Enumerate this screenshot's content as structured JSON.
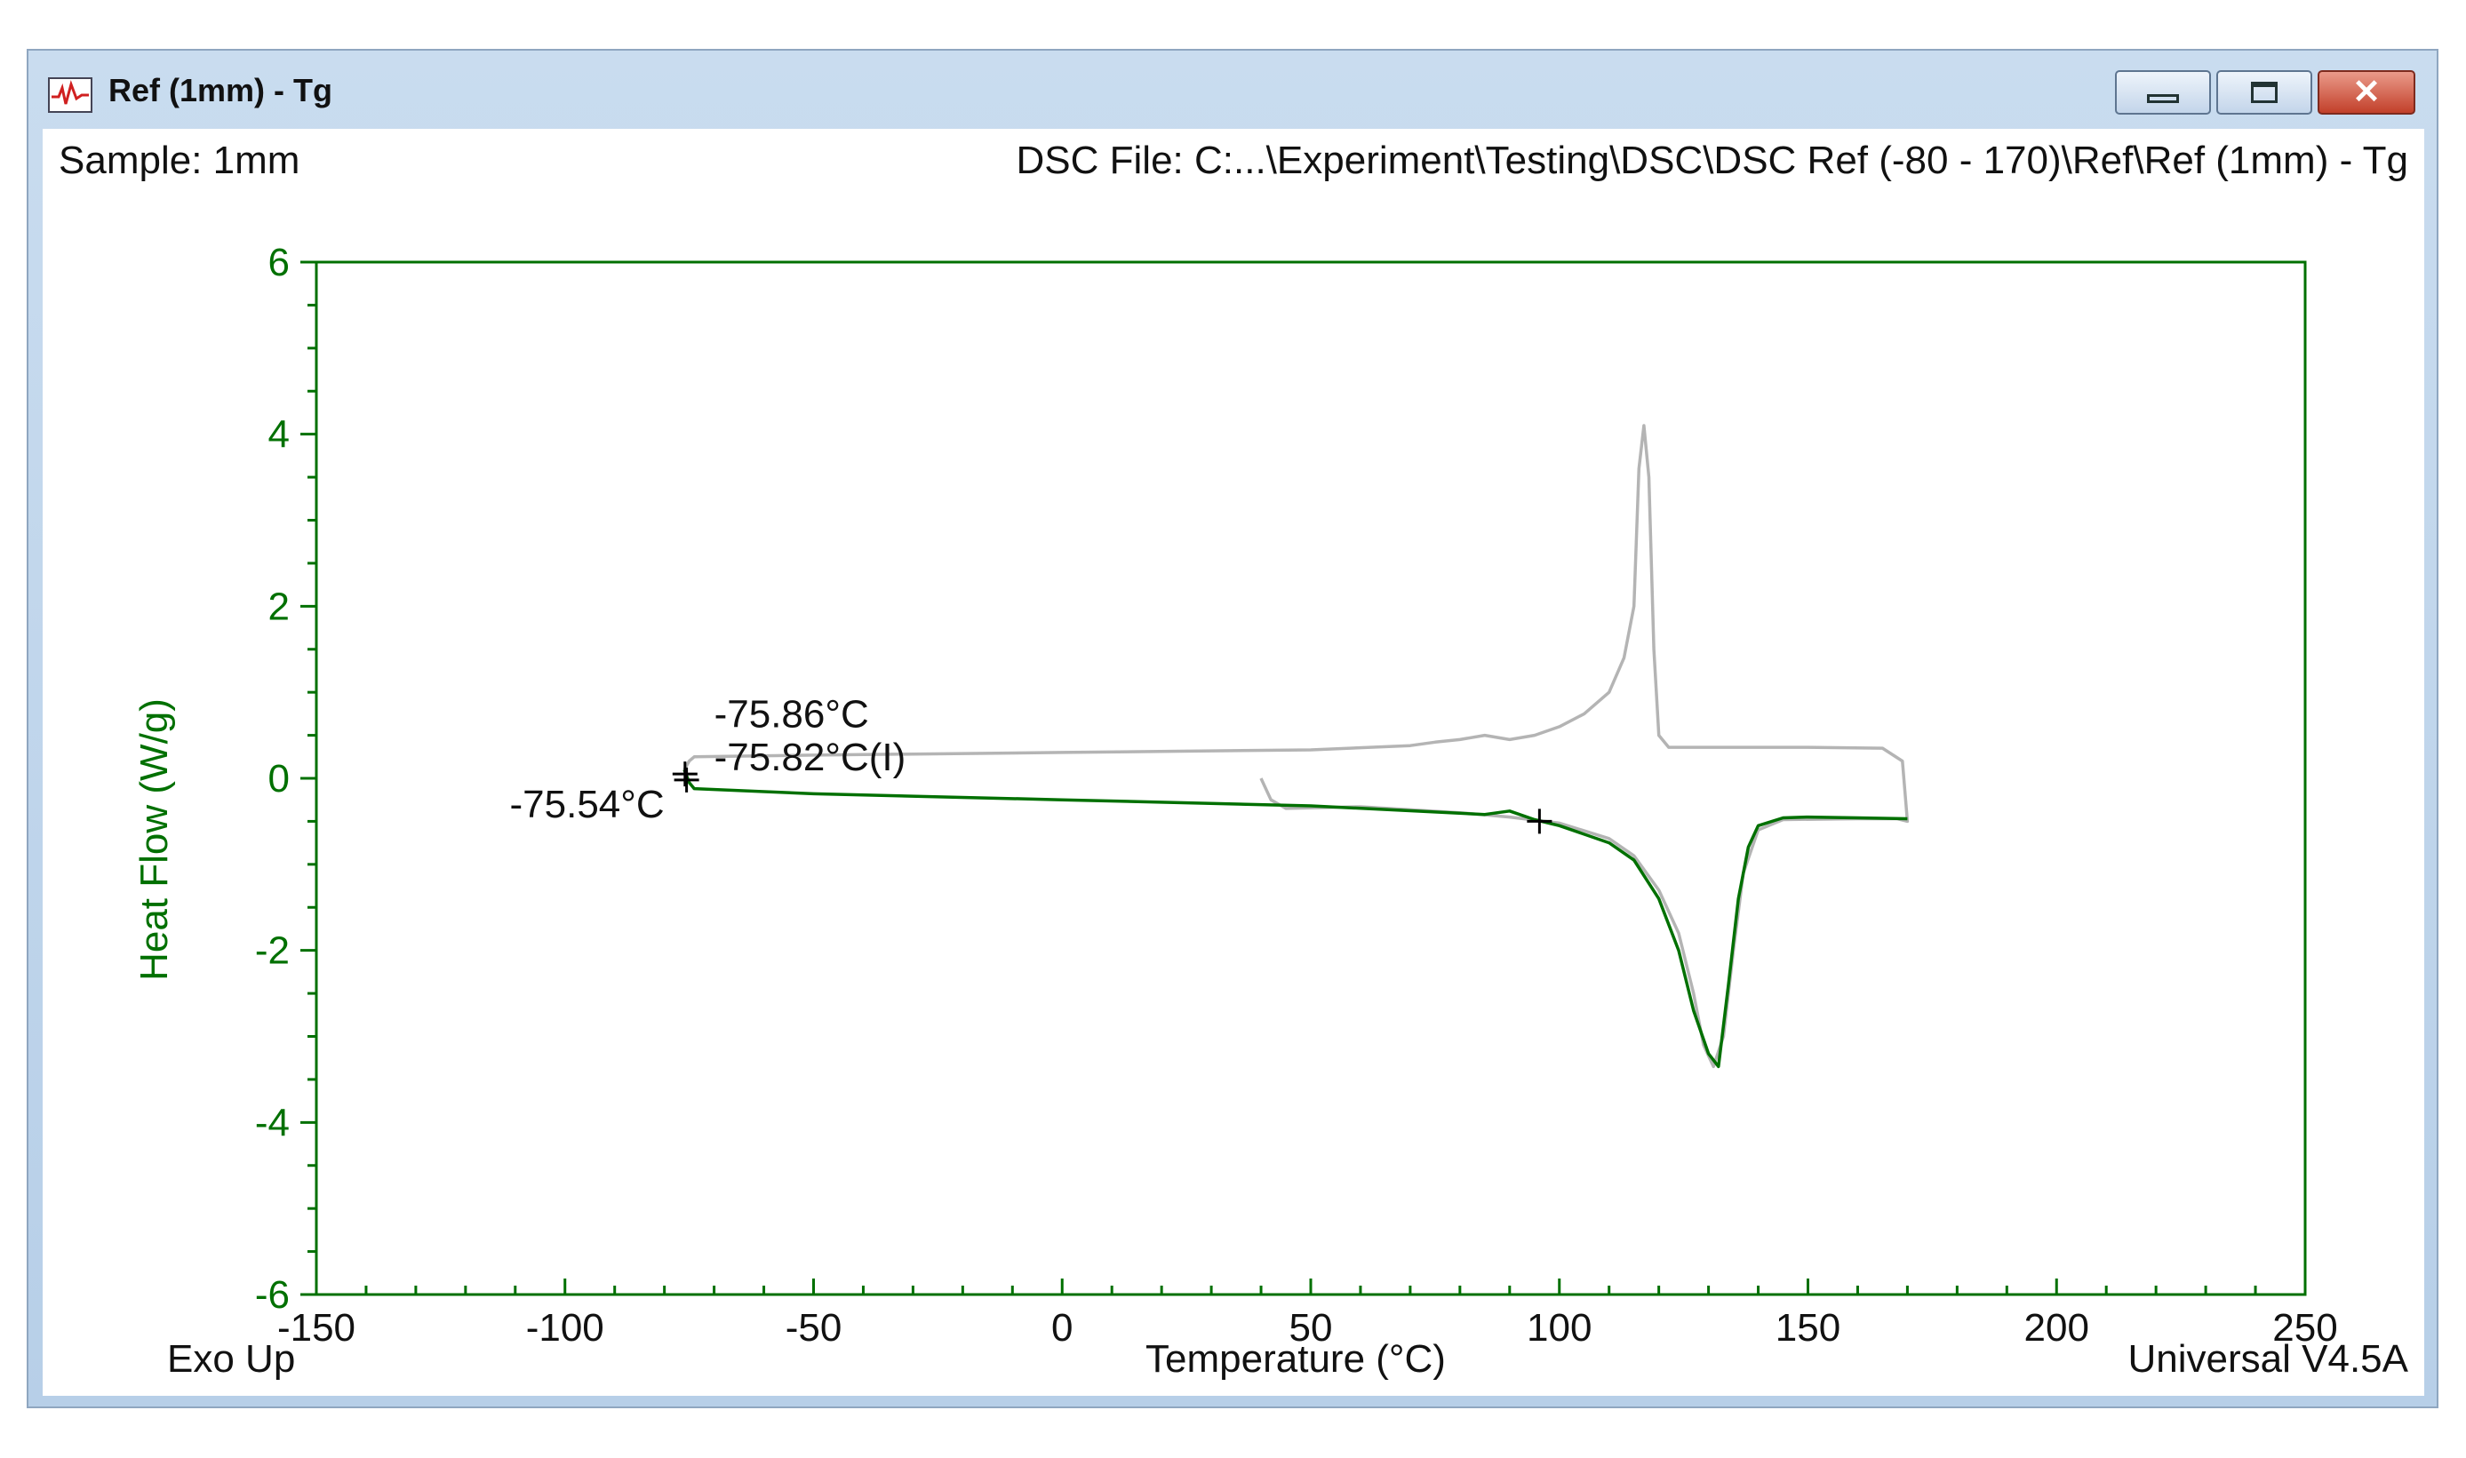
{
  "window": {
    "title": "Ref (1mm) - Tg",
    "icon": "dsc-plot-icon",
    "buttons": [
      "minimize-icon",
      "maximize-icon",
      "close-icon"
    ]
  },
  "header": {
    "sample": "Sample: 1mm",
    "file": "DSC File: C:...\\Experiment\\Testing\\DSC\\DSC Ref (-80 - 170)\\Ref\\Ref (1mm) - Tg"
  },
  "footer": {
    "left": "Exo Up",
    "right": "Universal V4.5A"
  },
  "colors": {
    "axis": "#007000",
    "heating": "#007000",
    "cooling": "#b4b4b4",
    "text": "#111111"
  },
  "chart_data": {
    "type": "line",
    "xlabel": "Temperature (°C)",
    "ylabel": "Heat Flow (W/g)",
    "xlim": [
      -150,
      250
    ],
    "ylim": [
      -6,
      6
    ],
    "xticks": [
      -150,
      -100,
      -50,
      0,
      50,
      100,
      150,
      200,
      250
    ],
    "yticks": [
      -6,
      -4,
      -2,
      0,
      2,
      4,
      6
    ],
    "grid": false,
    "series": [
      {
        "color": "#007000",
        "points": [
          [
            -76,
            0.1
          ],
          [
            -75,
            -0.05
          ],
          [
            -74,
            -0.12
          ],
          [
            -50,
            -0.18
          ],
          [
            0,
            -0.25
          ],
          [
            50,
            -0.32
          ],
          [
            85,
            -0.42
          ],
          [
            90,
            -0.38
          ],
          [
            95,
            -0.48
          ],
          [
            100,
            -0.55
          ],
          [
            110,
            -0.75
          ],
          [
            115,
            -0.95
          ],
          [
            120,
            -1.4
          ],
          [
            124,
            -2.0
          ],
          [
            127,
            -2.7
          ],
          [
            130,
            -3.2
          ],
          [
            132,
            -3.35
          ],
          [
            134,
            -2.4
          ],
          [
            136,
            -1.4
          ],
          [
            138,
            -0.8
          ],
          [
            140,
            -0.55
          ],
          [
            145,
            -0.46
          ],
          [
            150,
            -0.45
          ],
          [
            160,
            -0.46
          ],
          [
            170,
            -0.47
          ]
        ]
      },
      {
        "color": "#b4b4b4",
        "points": [
          [
            40,
            0.0
          ],
          [
            42,
            -0.25
          ],
          [
            45,
            -0.35
          ],
          [
            60,
            -0.33
          ],
          [
            80,
            -0.4
          ],
          [
            90,
            -0.45
          ],
          [
            100,
            -0.52
          ],
          [
            110,
            -0.7
          ],
          [
            115,
            -0.9
          ],
          [
            120,
            -1.3
          ],
          [
            124,
            -1.8
          ],
          [
            127,
            -2.5
          ],
          [
            129,
            -3.1
          ],
          [
            131,
            -3.35
          ],
          [
            133,
            -3.0
          ],
          [
            135,
            -2.0
          ],
          [
            137,
            -1.1
          ],
          [
            140,
            -0.6
          ],
          [
            145,
            -0.48
          ],
          [
            160,
            -0.47
          ],
          [
            168,
            -0.47
          ],
          [
            170,
            -0.5
          ],
          [
            169,
            0.2
          ],
          [
            165,
            0.35
          ],
          [
            150,
            0.36
          ],
          [
            135,
            0.36
          ],
          [
            122,
            0.36
          ],
          [
            120,
            0.5
          ],
          [
            119,
            1.5
          ],
          [
            118,
            3.5
          ],
          [
            117,
            4.1
          ],
          [
            116,
            3.6
          ],
          [
            115,
            2.0
          ],
          [
            113,
            1.4
          ],
          [
            110,
            1.0
          ],
          [
            105,
            0.75
          ],
          [
            100,
            0.6
          ],
          [
            95,
            0.5
          ],
          [
            90,
            0.45
          ],
          [
            85,
            0.5
          ],
          [
            80,
            0.45
          ],
          [
            75,
            0.42
          ],
          [
            70,
            0.38
          ],
          [
            50,
            0.33
          ],
          [
            0,
            0.3
          ],
          [
            -50,
            0.27
          ],
          [
            -74,
            0.25
          ],
          [
            -75,
            0.2
          ],
          [
            -76,
            0.1
          ]
        ]
      }
    ],
    "markers": [
      [
        -75.86,
        0.05
      ],
      [
        -75.54,
        -0.02
      ],
      [
        96,
        -0.5
      ]
    ],
    "annotations": [
      {
        "text": "-75.86°C",
        "x": -70,
        "y": 0.75
      },
      {
        "text": "-75.82°C(I)",
        "x": -70,
        "y": 0.25
      },
      {
        "text": "-75.54°C",
        "x": -80,
        "y": -0.3
      }
    ]
  }
}
